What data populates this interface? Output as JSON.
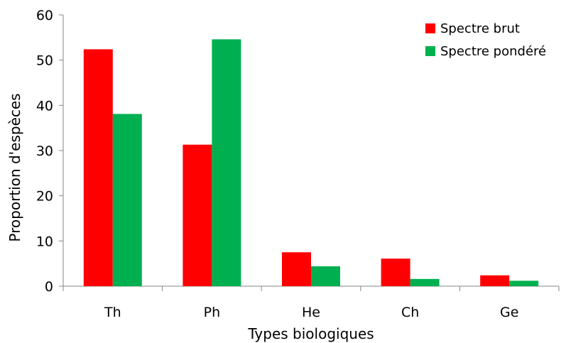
{
  "chart_data": {
    "type": "bar",
    "title": "",
    "xlabel": "Types biologiques",
    "ylabel": "Proportion d'espèces",
    "categories": [
      "Th",
      "Ph",
      "He",
      "Ch",
      "Ge"
    ],
    "ylim": [
      0,
      60
    ],
    "yticks": [
      0,
      10,
      20,
      30,
      40,
      50,
      60
    ],
    "grid": false,
    "legend_position": "top-right",
    "series": [
      {
        "name": "Spectre brut",
        "color": "#ff0000",
        "values": [
          52.4,
          31.3,
          7.5,
          6.1,
          2.4
        ]
      },
      {
        "name": "Spectre pondéré",
        "color": "#00b050",
        "values": [
          38.1,
          54.6,
          4.4,
          1.6,
          1.2
        ]
      }
    ]
  }
}
